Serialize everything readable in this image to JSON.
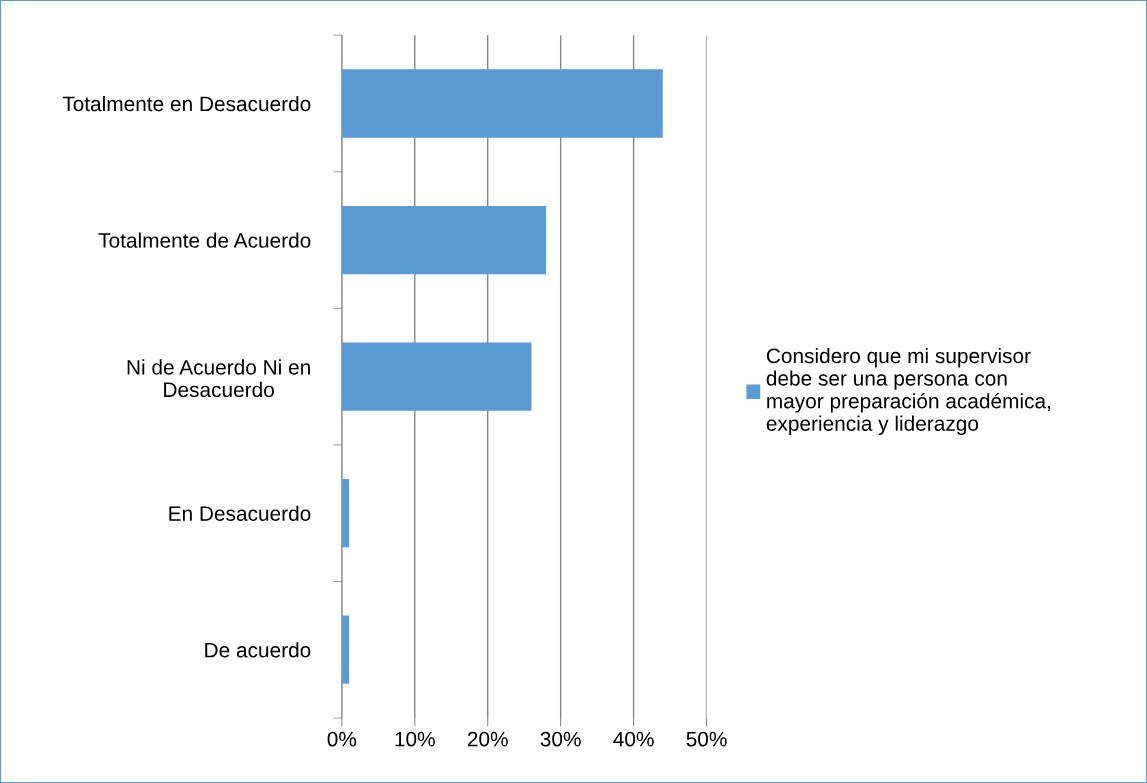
{
  "chart_data": {
    "type": "bar",
    "orientation": "horizontal",
    "categories": [
      "Totalmente en Desacuerdo",
      "Totalmente de Acuerdo",
      "Ni de Acuerdo Ni en Desacuerdo",
      "En Desacuerdo",
      "De acuerdo"
    ],
    "series": [
      {
        "name": "Considero que mi supervisor debe ser una persona con mayor preparación académica, experiencia y liderazgo",
        "color": "#5b9bd5",
        "values": [
          44,
          28,
          26,
          1,
          1
        ]
      }
    ],
    "xlim": [
      0,
      50
    ],
    "xticks": [
      {
        "value": 0,
        "label": "0%"
      },
      {
        "value": 10,
        "label": "10%"
      },
      {
        "value": 20,
        "label": "20%"
      },
      {
        "value": 30,
        "label": "30%"
      },
      {
        "value": 40,
        "label": "40%"
      },
      {
        "value": 50,
        "label": "50%"
      }
    ],
    "grid": "x",
    "legend": "right"
  }
}
